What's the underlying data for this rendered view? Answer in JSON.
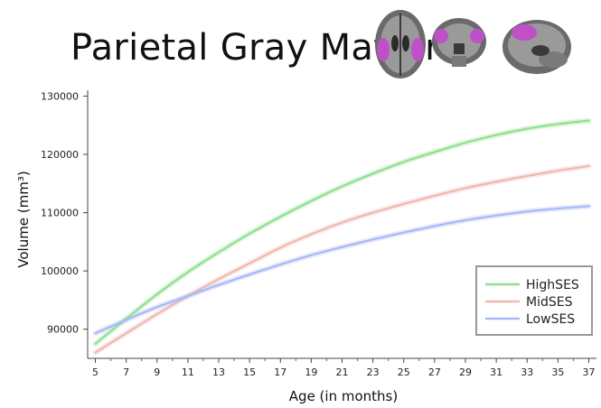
{
  "chart_data": {
    "type": "line",
    "title": "Parietal Gray Matter",
    "xlabel": "Age (in months)",
    "ylabel": "Volume (mm³)",
    "xlim": [
      4.5,
      37.5
    ],
    "ylim": [
      85000,
      131000
    ],
    "xticks": [
      5,
      7,
      9,
      11,
      13,
      15,
      17,
      19,
      21,
      23,
      25,
      27,
      29,
      31,
      33,
      35,
      37
    ],
    "yticks": [
      90000,
      100000,
      110000,
      120000,
      130000
    ],
    "legend_position": "bottom-right",
    "grid": false,
    "x": [
      5,
      7,
      9,
      11,
      13,
      15,
      17,
      19,
      21,
      23,
      25,
      27,
      29,
      31,
      33,
      35,
      37
    ],
    "series": [
      {
        "name": "HighSES",
        "color": "#90e090",
        "values": [
          87500,
          91800,
          96000,
          99800,
          103200,
          106400,
          109300,
          112000,
          114500,
          116700,
          118700,
          120400,
          122000,
          123300,
          124400,
          125200,
          125800
        ]
      },
      {
        "name": "MidSES",
        "color": "#f0b8ae",
        "values": [
          86000,
          89300,
          92600,
          95700,
          98600,
          101300,
          104000,
          106300,
          108300,
          110000,
          111500,
          112900,
          114200,
          115300,
          116300,
          117200,
          118000
        ]
      },
      {
        "name": "LowSES",
        "color": "#a8b8f8",
        "values": [
          89300,
          91600,
          93800,
          95700,
          97600,
          99400,
          101100,
          102700,
          104100,
          105400,
          106600,
          107700,
          108700,
          109500,
          110200,
          110700,
          111100
        ]
      }
    ]
  }
}
